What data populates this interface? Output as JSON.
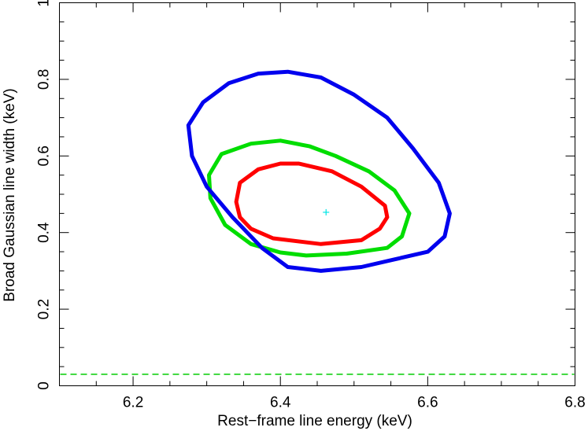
{
  "chart_data": {
    "type": "contour",
    "xlabel": "Rest−frame line energy (keV)",
    "ylabel": "Broad Gaussian line width (keV)",
    "xlim": [
      6.1,
      6.8
    ],
    "ylim": [
      0,
      1
    ],
    "xticks": [
      6.2,
      6.4,
      6.6,
      6.8
    ],
    "xtick_labels": [
      "6.2",
      "6.4",
      "6.6",
      "6.8"
    ],
    "yticks": [
      0,
      0.2,
      0.4,
      0.6,
      0.8,
      1
    ],
    "ytick_labels": [
      "0",
      "0.2",
      "0.4",
      "0.6",
      "0.8",
      "1"
    ],
    "best_fit": {
      "x": 6.462,
      "y": 0.453,
      "color": "#00e5e5"
    },
    "reference_line": {
      "y": 0.03,
      "color": "#00cc00",
      "style": "dashed"
    },
    "contours": [
      {
        "color": "#ff0000",
        "points": [
          [
            6.455,
            0.37
          ],
          [
            6.51,
            0.38
          ],
          [
            6.535,
            0.41
          ],
          [
            6.545,
            0.44
          ],
          [
            6.542,
            0.47
          ],
          [
            6.51,
            0.52
          ],
          [
            6.47,
            0.56
          ],
          [
            6.425,
            0.58
          ],
          [
            6.4,
            0.58
          ],
          [
            6.37,
            0.565
          ],
          [
            6.345,
            0.53
          ],
          [
            6.34,
            0.48
          ],
          [
            6.345,
            0.44
          ],
          [
            6.36,
            0.41
          ],
          [
            6.39,
            0.385
          ]
        ]
      },
      {
        "color": "#00dd00",
        "points": [
          [
            6.435,
            0.34
          ],
          [
            6.49,
            0.345
          ],
          [
            6.545,
            0.36
          ],
          [
            6.565,
            0.39
          ],
          [
            6.575,
            0.45
          ],
          [
            6.555,
            0.51
          ],
          [
            6.52,
            0.56
          ],
          [
            6.475,
            0.6
          ],
          [
            6.44,
            0.625
          ],
          [
            6.4,
            0.64
          ],
          [
            6.36,
            0.632
          ],
          [
            6.32,
            0.605
          ],
          [
            6.303,
            0.55
          ],
          [
            6.305,
            0.49
          ],
          [
            6.325,
            0.42
          ],
          [
            6.36,
            0.37
          ],
          [
            6.4,
            0.348
          ]
        ]
      },
      {
        "color": "#0000ee",
        "points": [
          [
            6.455,
            0.3
          ],
          [
            6.51,
            0.31
          ],
          [
            6.555,
            0.33
          ],
          [
            6.6,
            0.35
          ],
          [
            6.623,
            0.39
          ],
          [
            6.63,
            0.45
          ],
          [
            6.615,
            0.53
          ],
          [
            6.58,
            0.62
          ],
          [
            6.545,
            0.7
          ],
          [
            6.5,
            0.76
          ],
          [
            6.455,
            0.805
          ],
          [
            6.41,
            0.82
          ],
          [
            6.37,
            0.815
          ],
          [
            6.33,
            0.79
          ],
          [
            6.295,
            0.74
          ],
          [
            6.275,
            0.68
          ],
          [
            6.28,
            0.6
          ],
          [
            6.3,
            0.52
          ],
          [
            6.335,
            0.44
          ],
          [
            6.375,
            0.36
          ],
          [
            6.41,
            0.31
          ]
        ]
      }
    ]
  }
}
